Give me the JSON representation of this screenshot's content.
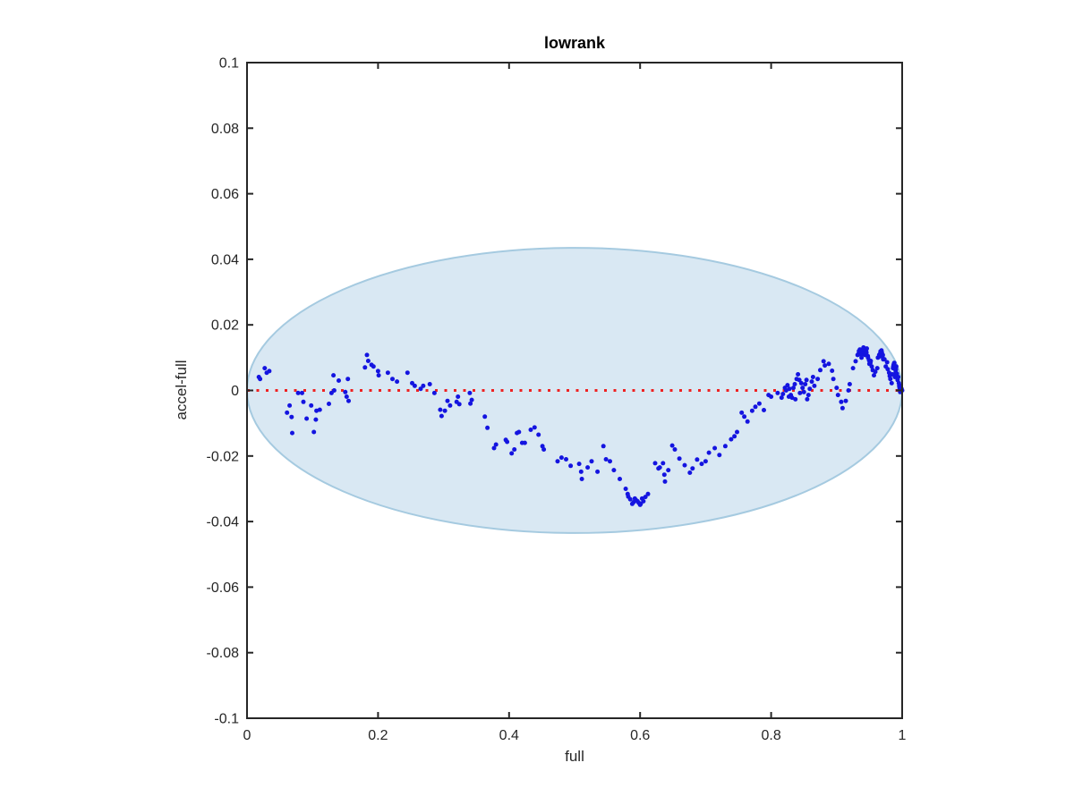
{
  "figure": {
    "background": "#ffffff",
    "axis_color": "#262626"
  },
  "chart_data": {
    "type": "scatter",
    "title": "lowrank",
    "xlabel": "full",
    "ylabel": "accel-full",
    "xlim": [
      0,
      1
    ],
    "ylim": [
      -0.1,
      0.1
    ],
    "x_ticks": [
      0,
      0.2,
      0.4,
      0.6,
      0.8,
      1
    ],
    "x_tick_labels": [
      "0",
      "0.2",
      "0.4",
      "0.6",
      "0.8",
      "1"
    ],
    "y_ticks": [
      0.1,
      0.08,
      0.06,
      0.04,
      0.02,
      0,
      -0.02,
      -0.04,
      -0.06,
      -0.08,
      -0.1
    ],
    "y_tick_labels": [
      "0.1",
      "0.08",
      "0.06",
      "0.04",
      "0.02",
      "0",
      "-0.02",
      "-0.04",
      "-0.06",
      "-0.08",
      "-0.1"
    ],
    "grid": false,
    "legend": null,
    "marker_color": "#1414e0",
    "marker_radius_px": 2.5,
    "zero_line": {
      "y": 0,
      "color": "#ee2222",
      "style": "dotted"
    },
    "confidence_ellipse": {
      "cx": 0.5,
      "cy": 0,
      "rx": 0.5,
      "ry": 0.0435,
      "fill": "#d9e8f3",
      "stroke": "#a5cae0",
      "stroke_width": 2
    },
    "points": [
      [
        0.018,
        0.0041
      ],
      [
        0.02,
        0.0035
      ],
      [
        0.027,
        0.0068
      ],
      [
        0.03,
        0.0054
      ],
      [
        0.034,
        0.0059
      ],
      [
        0.061,
        -0.0068
      ],
      [
        0.065,
        -0.0046
      ],
      [
        0.068,
        -0.0081
      ],
      [
        0.069,
        -0.013
      ],
      [
        0.078,
        -0.0008
      ],
      [
        0.084,
        -0.0008
      ],
      [
        0.086,
        -0.0035
      ],
      [
        0.091,
        -0.0086
      ],
      [
        0.098,
        -0.0046
      ],
      [
        0.102,
        -0.0127
      ],
      [
        0.105,
        -0.0089
      ],
      [
        0.106,
        -0.0062
      ],
      [
        0.111,
        -0.0059
      ],
      [
        0.125,
        -0.0041
      ],
      [
        0.129,
        -0.0008
      ],
      [
        0.132,
        0.0046
      ],
      [
        0.133,
        0
      ],
      [
        0.14,
        0.003
      ],
      [
        0.15,
        -0.0005
      ],
      [
        0.152,
        -0.0019
      ],
      [
        0.154,
        0.0035
      ],
      [
        0.155,
        -0.0032
      ],
      [
        0.18,
        0.007
      ],
      [
        0.183,
        0.0108
      ],
      [
        0.185,
        0.009
      ],
      [
        0.19,
        0.0078
      ],
      [
        0.193,
        0.0073
      ],
      [
        0.2,
        0.0059
      ],
      [
        0.201,
        0.0046
      ],
      [
        0.215,
        0.0054
      ],
      [
        0.222,
        0.0035
      ],
      [
        0.229,
        0.0027
      ],
      [
        0.245,
        0.0054
      ],
      [
        0.252,
        0.0022
      ],
      [
        0.256,
        0.0014
      ],
      [
        0.265,
        0.0005
      ],
      [
        0.269,
        0.0014
      ],
      [
        0.279,
        0.0019
      ],
      [
        0.286,
        -0.0008
      ],
      [
        0.295,
        -0.0059
      ],
      [
        0.297,
        -0.0078
      ],
      [
        0.302,
        -0.0062
      ],
      [
        0.306,
        -0.0032
      ],
      [
        0.31,
        -0.0046
      ],
      [
        0.32,
        -0.0035
      ],
      [
        0.322,
        -0.0019
      ],
      [
        0.324,
        -0.0042
      ],
      [
        0.34,
        -0.0008
      ],
      [
        0.341,
        -0.004
      ],
      [
        0.343,
        -0.0029
      ],
      [
        0.363,
        -0.008
      ],
      [
        0.367,
        -0.0114
      ],
      [
        0.377,
        -0.0176
      ],
      [
        0.38,
        -0.0165
      ],
      [
        0.395,
        -0.0151
      ],
      [
        0.397,
        -0.0157
      ],
      [
        0.404,
        -0.0192
      ],
      [
        0.408,
        -0.018
      ],
      [
        0.412,
        -0.013
      ],
      [
        0.415,
        -0.0127
      ],
      [
        0.42,
        -0.016
      ],
      [
        0.424,
        -0.016
      ],
      [
        0.433,
        -0.012
      ],
      [
        0.439,
        -0.0113
      ],
      [
        0.445,
        -0.0135
      ],
      [
        0.451,
        -0.017
      ],
      [
        0.453,
        -0.018
      ],
      [
        0.474,
        -0.0216
      ],
      [
        0.48,
        -0.0205
      ],
      [
        0.487,
        -0.021
      ],
      [
        0.494,
        -0.023
      ],
      [
        0.507,
        -0.0224
      ],
      [
        0.51,
        -0.0248
      ],
      [
        0.511,
        -0.027
      ],
      [
        0.52,
        -0.0235
      ],
      [
        0.526,
        -0.0216
      ],
      [
        0.535,
        -0.0248
      ],
      [
        0.544,
        -0.017
      ],
      [
        0.548,
        -0.021
      ],
      [
        0.554,
        -0.0216
      ],
      [
        0.56,
        -0.0243
      ],
      [
        0.569,
        -0.027
      ],
      [
        0.578,
        -0.03
      ],
      [
        0.581,
        -0.0316
      ],
      [
        0.582,
        -0.0324
      ],
      [
        0.585,
        -0.0332
      ],
      [
        0.588,
        -0.0346
      ],
      [
        0.59,
        -0.0341
      ],
      [
        0.592,
        -0.033
      ],
      [
        0.594,
        -0.0335
      ],
      [
        0.596,
        -0.0338
      ],
      [
        0.598,
        -0.0343
      ],
      [
        0.6,
        -0.0349
      ],
      [
        0.601,
        -0.0346
      ],
      [
        0.603,
        -0.033
      ],
      [
        0.605,
        -0.0338
      ],
      [
        0.608,
        -0.0325
      ],
      [
        0.612,
        -0.0316
      ],
      [
        0.623,
        -0.0222
      ],
      [
        0.628,
        -0.0238
      ],
      [
        0.63,
        -0.0235
      ],
      [
        0.635,
        -0.0222
      ],
      [
        0.637,
        -0.0257
      ],
      [
        0.638,
        -0.0278
      ],
      [
        0.643,
        -0.0243
      ],
      [
        0.649,
        -0.0168
      ],
      [
        0.653,
        -0.018
      ],
      [
        0.66,
        -0.0208
      ],
      [
        0.668,
        -0.0228
      ],
      [
        0.676,
        -0.0251
      ],
      [
        0.68,
        -0.0238
      ],
      [
        0.687,
        -0.0211
      ],
      [
        0.694,
        -0.0224
      ],
      [
        0.7,
        -0.0216
      ],
      [
        0.705,
        -0.019
      ],
      [
        0.714,
        -0.0176
      ],
      [
        0.721,
        -0.0197
      ],
      [
        0.73,
        -0.017
      ],
      [
        0.739,
        -0.0149
      ],
      [
        0.744,
        -0.014
      ],
      [
        0.748,
        -0.0127
      ],
      [
        0.755,
        -0.0068
      ],
      [
        0.759,
        -0.008
      ],
      [
        0.764,
        -0.0095
      ],
      [
        0.771,
        -0.0062
      ],
      [
        0.776,
        -0.005
      ],
      [
        0.782,
        -0.004
      ],
      [
        0.789,
        -0.006
      ],
      [
        0.796,
        -0.0014
      ],
      [
        0.8,
        -0.0019
      ],
      [
        0.81,
        -0.0008
      ],
      [
        0.816,
        -0.0022
      ],
      [
        0.818,
        -0.0011
      ],
      [
        0.821,
        0.0008
      ],
      [
        0.823,
        0
      ],
      [
        0.825,
        0.0016
      ],
      [
        0.827,
        -0.0019
      ],
      [
        0.828,
        0.0005
      ],
      [
        0.83,
        -0.0014
      ],
      [
        0.832,
        -0.0022
      ],
      [
        0.834,
        0.0008
      ],
      [
        0.836,
        0.0019
      ],
      [
        0.837,
        -0.0027
      ],
      [
        0.839,
        0.0035
      ],
      [
        0.841,
        0.0049
      ],
      [
        0.843,
        0.0032
      ],
      [
        0.844,
        -0.0008
      ],
      [
        0.846,
        0.0022
      ],
      [
        0.848,
        0.0008
      ],
      [
        0.85,
        -0.0005
      ],
      [
        0.852,
        0.0019
      ],
      [
        0.854,
        0.0032
      ],
      [
        0.855,
        -0.0027
      ],
      [
        0.857,
        -0.0014
      ],
      [
        0.859,
        0.0005
      ],
      [
        0.862,
        0.0027
      ],
      [
        0.864,
        0.0041
      ],
      [
        0.866,
        0.0014
      ],
      [
        0.871,
        0.0035
      ],
      [
        0.875,
        0.0062
      ],
      [
        0.88,
        0.0089
      ],
      [
        0.882,
        0.0076
      ],
      [
        0.888,
        0.0081
      ],
      [
        0.893,
        0.006
      ],
      [
        0.895,
        0.0035
      ],
      [
        0.9,
        0.0008
      ],
      [
        0.902,
        -0.0014
      ],
      [
        0.907,
        -0.0035
      ],
      [
        0.909,
        -0.0054
      ],
      [
        0.914,
        -0.0032
      ],
      [
        0.918,
        0
      ],
      [
        0.92,
        0.0019
      ],
      [
        0.925,
        0.0068
      ],
      [
        0.929,
        0.0089
      ],
      [
        0.932,
        0.0108
      ],
      [
        0.9335,
        0.0112
      ],
      [
        0.934,
        0.012
      ],
      [
        0.9355,
        0.0125
      ],
      [
        0.936,
        0.0116
      ],
      [
        0.9375,
        0.0108
      ],
      [
        0.938,
        0.01
      ],
      [
        0.9395,
        0.0118
      ],
      [
        0.94,
        0.0125
      ],
      [
        0.941,
        0.0131
      ],
      [
        0.9415,
        0.0125
      ],
      [
        0.943,
        0.0114
      ],
      [
        0.9435,
        0.0108
      ],
      [
        0.945,
        0.0122
      ],
      [
        0.9455,
        0.0116
      ],
      [
        0.946,
        0.0128
      ],
      [
        0.9475,
        0.0105
      ],
      [
        0.948,
        0.01
      ],
      [
        0.9495,
        0.0092
      ],
      [
        0.95,
        0.0081
      ],
      [
        0.9515,
        0.0084
      ],
      [
        0.952,
        0.009
      ],
      [
        0.9535,
        0.0073
      ],
      [
        0.955,
        0.0062
      ],
      [
        0.957,
        0.0046
      ],
      [
        0.959,
        0.0057
      ],
      [
        0.962,
        0.0068
      ],
      [
        0.963,
        0.01
      ],
      [
        0.9645,
        0.0103
      ],
      [
        0.965,
        0.0109
      ],
      [
        0.9665,
        0.0113
      ],
      [
        0.967,
        0.0119
      ],
      [
        0.9685,
        0.0122
      ],
      [
        0.969,
        0.0116
      ],
      [
        0.97,
        0.0103
      ],
      [
        0.9705,
        0.0108
      ],
      [
        0.971,
        0.0095
      ],
      [
        0.973,
        0.0095
      ],
      [
        0.975,
        0.0073
      ],
      [
        0.977,
        0.0086
      ],
      [
        0.978,
        0.0065
      ],
      [
        0.98,
        0.0054
      ],
      [
        0.981,
        0.0044
      ],
      [
        0.982,
        0.0035
      ],
      [
        0.984,
        0.0022
      ],
      [
        0.985,
        0.0049
      ],
      [
        0.986,
        0.0068
      ],
      [
        0.9865,
        0.0073
      ],
      [
        0.987,
        0.0078
      ],
      [
        0.9875,
        0.0081
      ],
      [
        0.988,
        0.0084
      ],
      [
        0.989,
        0.0041
      ],
      [
        0.9895,
        0.0051
      ],
      [
        0.99,
        0.006
      ],
      [
        0.9905,
        0.0065
      ],
      [
        0.991,
        0.0073
      ],
      [
        0.992,
        0.0051
      ],
      [
        0.993,
        0.0032
      ],
      [
        0.994,
        0.0041
      ],
      [
        0.995,
        0.0022
      ],
      [
        0.9955,
        0.0014
      ],
      [
        0.996,
        0.0008
      ],
      [
        0.997,
        -0.0005
      ],
      [
        0.998,
        0.0014
      ],
      [
        0.999,
        0.0005
      ],
      [
        1,
        0
      ]
    ]
  }
}
